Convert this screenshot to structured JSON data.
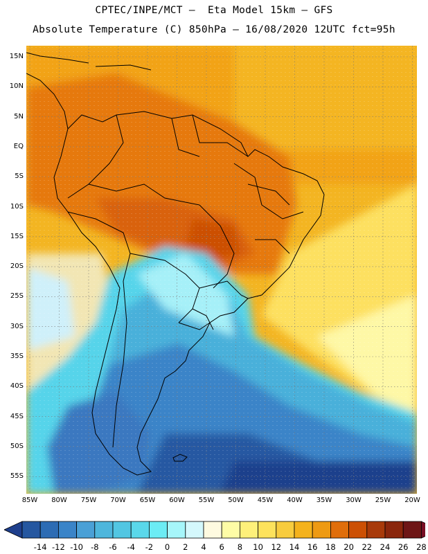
{
  "header": {
    "title_line1": "CPTEC/INPE/MCT —  Eta Model 15km — GFS",
    "title_line2": "Absolute Temperature (C) 850hPa — 16/08/2020 12UTC fct=95h"
  },
  "map": {
    "lat_labels": [
      "15N",
      "10N",
      "5N",
      "EQ",
      "5S",
      "10S",
      "15S",
      "20S",
      "25S",
      "30S",
      "35S",
      "40S",
      "45S",
      "50S",
      "55S"
    ],
    "lon_labels": [
      "85W",
      "80W",
      "75W",
      "70W",
      "65W",
      "60W",
      "55W",
      "50W",
      "45W",
      "40W",
      "35W",
      "30W",
      "25W",
      "20W"
    ]
  },
  "legend": {
    "labels": [
      "-14",
      "-12",
      "-10",
      "-8",
      "-6",
      "-4",
      "-2",
      "0",
      "2",
      "4",
      "6",
      "8",
      "10",
      "12",
      "14",
      "16",
      "18",
      "20",
      "22",
      "24",
      "26",
      "28"
    ],
    "colors": [
      "#1e3f8c",
      "#2557a0",
      "#2d6cb4",
      "#3a84c8",
      "#4aa0d6",
      "#4eb6dc",
      "#52c6e2",
      "#5ad8ea",
      "#6cecf4",
      "#a6f6fa",
      "#d4f8fc",
      "#fefae0",
      "#fefca6",
      "#fef07a",
      "#fde25c",
      "#f8cc3e",
      "#f4b21c",
      "#ee9a12",
      "#e06e0a",
      "#cc5004",
      "#a83a0a",
      "#8a260c",
      "#6e1616",
      "#7a0e24"
    ]
  }
}
